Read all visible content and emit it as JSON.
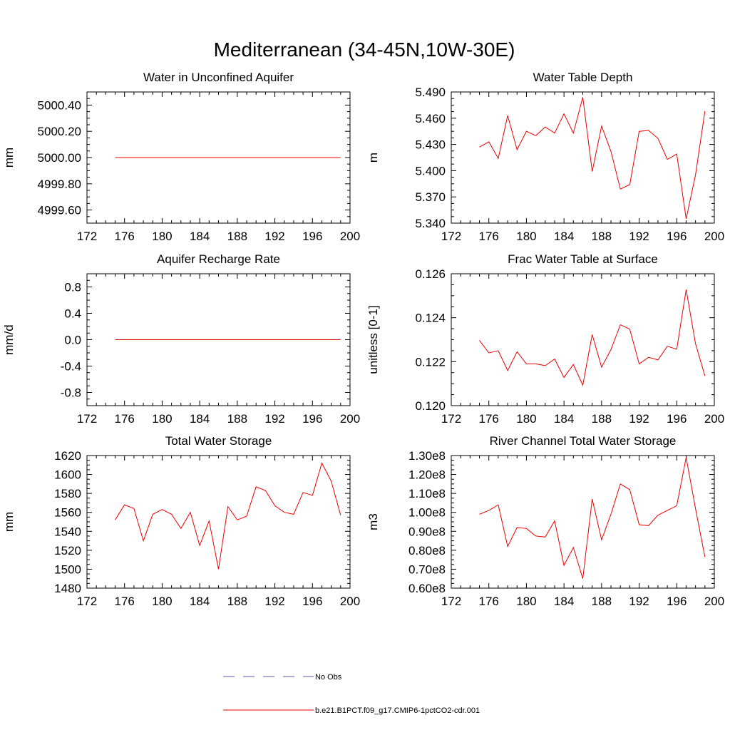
{
  "figure": {
    "title": "Mediterranean (34-45N,10W-30E)"
  },
  "legend": {
    "entries": [
      {
        "label": "No Obs",
        "color": "#5a5aa0",
        "style": "dashed"
      },
      {
        "label": "b.e21.B1PCT.f09_g17.CMIP6-1pctCO2-cdr.001",
        "color": "#ee0000",
        "style": "solid"
      }
    ]
  },
  "chart_data": [
    {
      "type": "line",
      "title": "Water in Unconfined Aquifer",
      "xlabel": "",
      "ylabel": "mm",
      "xlim": [
        172,
        200
      ],
      "ylim": [
        4999.5,
        5000.5
      ],
      "xticks": [
        "172",
        "176",
        "180",
        "184",
        "188",
        "192",
        "196",
        "200"
      ],
      "yticks": [
        {
          "v": 4999.6,
          "label": "4999.60"
        },
        {
          "v": 4999.8,
          "label": "4999.80"
        },
        {
          "v": 5000.0,
          "label": "5000.00"
        },
        {
          "v": 5000.2,
          "label": "5000.20"
        },
        {
          "v": 5000.4,
          "label": "5000.40"
        }
      ],
      "x": [
        175,
        176,
        177,
        178,
        179,
        180,
        181,
        182,
        183,
        184,
        185,
        186,
        187,
        188,
        189,
        190,
        191,
        192,
        193,
        194,
        195,
        196,
        197,
        198,
        199
      ],
      "series": [
        {
          "name": "b.e21.B1PCT.f09_g17.CMIP6-1pctCO2-cdr.001",
          "color": "#ee0000",
          "values": [
            5000,
            5000,
            5000,
            5000,
            5000,
            5000,
            5000,
            5000,
            5000,
            5000,
            5000,
            5000,
            5000,
            5000,
            5000,
            5000,
            5000,
            5000,
            5000,
            5000,
            5000,
            5000,
            5000,
            5000,
            5000
          ]
        }
      ]
    },
    {
      "type": "line",
      "title": "Water Table Depth",
      "xlabel": "",
      "ylabel": "m",
      "xlim": [
        172,
        200
      ],
      "ylim": [
        5.34,
        5.49
      ],
      "xticks": [
        "172",
        "176",
        "180",
        "184",
        "188",
        "192",
        "196",
        "200"
      ],
      "yticks": [
        {
          "v": 5.34,
          "label": "5.340"
        },
        {
          "v": 5.37,
          "label": "5.370"
        },
        {
          "v": 5.4,
          "label": "5.400"
        },
        {
          "v": 5.43,
          "label": "5.430"
        },
        {
          "v": 5.46,
          "label": "5.460"
        },
        {
          "v": 5.49,
          "label": "5.490"
        }
      ],
      "x": [
        175,
        176,
        177,
        178,
        179,
        180,
        181,
        182,
        183,
        184,
        185,
        186,
        187,
        188,
        189,
        190,
        191,
        192,
        193,
        194,
        195,
        196,
        197,
        198,
        199
      ],
      "series": [
        {
          "name": "b.e21.B1PCT.f09_g17.CMIP6-1pctCO2-cdr.001",
          "color": "#ee0000",
          "values": [
            5.427,
            5.433,
            5.414,
            5.463,
            5.424,
            5.445,
            5.44,
            5.45,
            5.443,
            5.465,
            5.443,
            5.484,
            5.399,
            5.451,
            5.422,
            5.379,
            5.384,
            5.445,
            5.446,
            5.437,
            5.413,
            5.419,
            5.345,
            5.395,
            5.468
          ]
        }
      ]
    },
    {
      "type": "line",
      "title": "Aquifer Recharge Rate",
      "xlabel": "",
      "ylabel": "mm/d",
      "xlim": [
        172,
        200
      ],
      "ylim": [
        -1.0,
        1.0
      ],
      "xticks": [
        "172",
        "176",
        "180",
        "184",
        "188",
        "192",
        "196",
        "200"
      ],
      "yticks": [
        {
          "v": -0.8,
          "label": "-0.8"
        },
        {
          "v": -0.4,
          "label": "-0.4"
        },
        {
          "v": 0.0,
          "label": "0.0"
        },
        {
          "v": 0.4,
          "label": "0.4"
        },
        {
          "v": 0.8,
          "label": "0.8"
        }
      ],
      "x": [
        175,
        176,
        177,
        178,
        179,
        180,
        181,
        182,
        183,
        184,
        185,
        186,
        187,
        188,
        189,
        190,
        191,
        192,
        193,
        194,
        195,
        196,
        197,
        198,
        199
      ],
      "series": [
        {
          "name": "b.e21.B1PCT.f09_g17.CMIP6-1pctCO2-cdr.001",
          "color": "#ee0000",
          "values": [
            0,
            0,
            0,
            0,
            0,
            0,
            0,
            0,
            0,
            0,
            0,
            0,
            0,
            0,
            0,
            0,
            0,
            0,
            0,
            0,
            0,
            0,
            0,
            0,
            0
          ]
        }
      ]
    },
    {
      "type": "line",
      "title": "Frac Water Table at Surface",
      "xlabel": "",
      "ylabel": "unitless [0-1]",
      "xlim": [
        172,
        200
      ],
      "ylim": [
        0.12,
        0.126
      ],
      "xticks": [
        "172",
        "176",
        "180",
        "184",
        "188",
        "192",
        "196",
        "200"
      ],
      "yticks": [
        {
          "v": 0.12,
          "label": "0.120"
        },
        {
          "v": 0.122,
          "label": "0.122"
        },
        {
          "v": 0.124,
          "label": "0.124"
        },
        {
          "v": 0.126,
          "label": "0.126"
        }
      ],
      "x": [
        175,
        176,
        177,
        178,
        179,
        180,
        181,
        182,
        183,
        184,
        185,
        186,
        187,
        188,
        189,
        190,
        191,
        192,
        193,
        194,
        195,
        196,
        197,
        198,
        199
      ],
      "series": [
        {
          "name": "b.e21.B1PCT.f09_g17.CMIP6-1pctCO2-cdr.001",
          "color": "#ee0000",
          "values": [
            0.12297,
            0.1224,
            0.1225,
            0.1216,
            0.12245,
            0.1219,
            0.1219,
            0.12182,
            0.12212,
            0.12128,
            0.12187,
            0.12093,
            0.12323,
            0.12175,
            0.12255,
            0.12368,
            0.12348,
            0.1219,
            0.1222,
            0.12208,
            0.1227,
            0.12257,
            0.12528,
            0.12282,
            0.12135
          ]
        }
      ]
    },
    {
      "type": "line",
      "title": "Total Water Storage",
      "xlabel": "",
      "ylabel": "mm",
      "xlim": [
        172,
        200
      ],
      "ylim": [
        1480,
        1620
      ],
      "xticks": [
        "172",
        "176",
        "180",
        "184",
        "188",
        "192",
        "196",
        "200"
      ],
      "yticks": [
        {
          "v": 1480,
          "label": "1480"
        },
        {
          "v": 1500,
          "label": "1500"
        },
        {
          "v": 1520,
          "label": "1520"
        },
        {
          "v": 1540,
          "label": "1540"
        },
        {
          "v": 1560,
          "label": "1560"
        },
        {
          "v": 1580,
          "label": "1580"
        },
        {
          "v": 1600,
          "label": "1600"
        },
        {
          "v": 1620,
          "label": "1620"
        }
      ],
      "x": [
        175,
        176,
        177,
        178,
        179,
        180,
        181,
        182,
        183,
        184,
        185,
        186,
        187,
        188,
        189,
        190,
        191,
        192,
        193,
        194,
        195,
        196,
        197,
        198,
        199
      ],
      "series": [
        {
          "name": "b.e21.B1PCT.f09_g17.CMIP6-1pctCO2-cdr.001",
          "color": "#ee0000",
          "values": [
            1552,
            1568,
            1564,
            1530,
            1558,
            1563,
            1558,
            1543,
            1560,
            1525,
            1551,
            1500,
            1566,
            1552,
            1556,
            1587,
            1583,
            1567,
            1560,
            1558,
            1581,
            1578,
            1612,
            1593,
            1557
          ]
        }
      ]
    },
    {
      "type": "line",
      "title": "River Channel Total Water Storage",
      "xlabel": "",
      "ylabel": "m3",
      "xlim": [
        172,
        200
      ],
      "ylim": [
        60000000.0,
        130000000.0
      ],
      "xticks": [
        "172",
        "176",
        "180",
        "184",
        "188",
        "192",
        "196",
        "200"
      ],
      "yticks": [
        {
          "v": 60000000.0,
          "label": "0.60e8"
        },
        {
          "v": 70000000.0,
          "label": "0.70e8"
        },
        {
          "v": 80000000.0,
          "label": "0.80e8"
        },
        {
          "v": 90000000.0,
          "label": "0.90e8"
        },
        {
          "v": 100000000.0,
          "label": "1.00e8"
        },
        {
          "v": 110000000.0,
          "label": "1.10e8"
        },
        {
          "v": 120000000.0,
          "label": "1.20e8"
        },
        {
          "v": 130000000.0,
          "label": "1.30e8"
        }
      ],
      "x": [
        175,
        176,
        177,
        178,
        179,
        180,
        181,
        182,
        183,
        184,
        185,
        186,
        187,
        188,
        189,
        190,
        191,
        192,
        193,
        194,
        195,
        196,
        197,
        198,
        199
      ],
      "series": [
        {
          "name": "b.e21.B1PCT.f09_g17.CMIP6-1pctCO2-cdr.001",
          "color": "#ee0000",
          "values": [
            99000000.0,
            101000000.0,
            104000000.0,
            82000000.0,
            92000000.0,
            91500000.0,
            87500000.0,
            87000000.0,
            95500000.0,
            72000000.0,
            81500000.0,
            65000000.0,
            107000000.0,
            85500000.0,
            99000000.0,
            115000000.0,
            112000000.0,
            93500000.0,
            93000000.0,
            98500000.0,
            101000000.0,
            103500000.0,
            129000000.0,
            102000000.0,
            76500000.0
          ]
        }
      ]
    }
  ]
}
